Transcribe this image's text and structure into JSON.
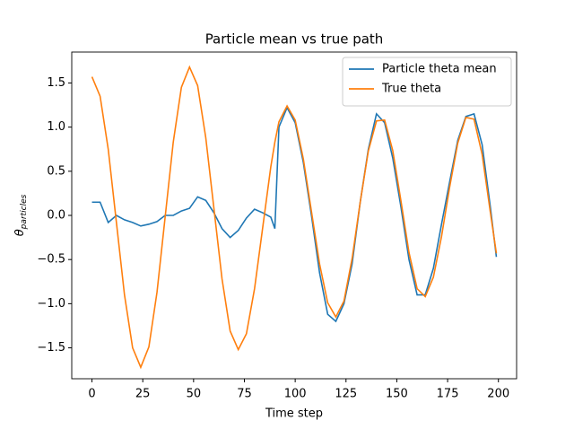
{
  "chart_data": {
    "type": "line",
    "title": "Particle mean vs true path",
    "xlabel": "Time step",
    "ylabel": {
      "symbol": "θ",
      "subscript": "particles"
    },
    "x": [
      0,
      4,
      8,
      12,
      16,
      20,
      24,
      28,
      32,
      36,
      40,
      44,
      48,
      52,
      56,
      60,
      64,
      68,
      72,
      76,
      80,
      84,
      88,
      90,
      92,
      96,
      100,
      104,
      108,
      112,
      116,
      120,
      124,
      128,
      132,
      136,
      140,
      144,
      148,
      152,
      156,
      160,
      164,
      168,
      172,
      176,
      180,
      184,
      188,
      192,
      196,
      199
    ],
    "series": [
      {
        "name": "Particle theta mean",
        "color": "#1f77b4",
        "values": [
          0.15,
          0.15,
          -0.08,
          0.0,
          -0.05,
          -0.08,
          -0.12,
          -0.1,
          -0.07,
          0.0,
          0.0,
          0.05,
          0.08,
          0.21,
          0.17,
          0.03,
          -0.15,
          -0.25,
          -0.17,
          -0.03,
          0.07,
          0.03,
          -0.02,
          -0.15,
          1.0,
          1.22,
          1.05,
          0.6,
          0.0,
          -0.65,
          -1.12,
          -1.2,
          -1.0,
          -0.55,
          0.15,
          0.75,
          1.15,
          1.05,
          0.65,
          0.1,
          -0.5,
          -0.9,
          -0.9,
          -0.6,
          -0.1,
          0.38,
          0.85,
          1.12,
          1.15,
          0.8,
          0.1,
          -0.47
        ]
      },
      {
        "name": "True theta",
        "color": "#ff7f0e",
        "values": [
          1.57,
          1.35,
          0.75,
          -0.075,
          -0.9,
          -1.5,
          -1.72,
          -1.49,
          -0.87,
          -0.02,
          0.83,
          1.45,
          1.68,
          1.47,
          0.88,
          0.08,
          -0.72,
          -1.31,
          -1.52,
          -1.34,
          -0.83,
          -0.14,
          0.55,
          0.83,
          1.06,
          1.24,
          1.08,
          0.64,
          0.045,
          -0.55,
          -0.99,
          -1.15,
          -0.97,
          -0.49,
          0.15,
          0.73,
          1.07,
          1.08,
          0.735,
          0.17,
          -0.42,
          -0.83,
          -0.92,
          -0.7,
          -0.24,
          0.32,
          0.82,
          1.11,
          1.09,
          0.69,
          0.04,
          -0.43
        ]
      }
    ],
    "xlim": [
      -9.95,
      208.95
    ],
    "xticks": [
      0,
      25,
      50,
      75,
      100,
      125,
      150,
      175,
      200
    ],
    "ylim": [
      -1.85,
      1.85
    ],
    "yticks": [
      {
        "value": -1.5,
        "label": "−1.5"
      },
      {
        "value": -1,
        "label": "−1.0"
      },
      {
        "value": -0.5,
        "label": "−0.5"
      },
      {
        "value": 0,
        "label": "0.0"
      },
      0.5,
      {
        "value": 1,
        "label": "1.0"
      },
      1.5
    ],
    "grid": false,
    "legend": "upper right"
  }
}
